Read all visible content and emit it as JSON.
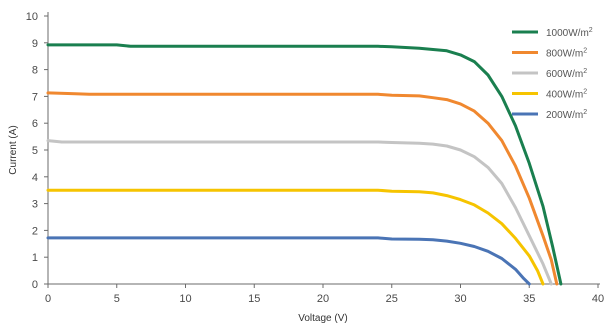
{
  "chart_data": {
    "type": "line",
    "title": "",
    "xlabel": "Voltage (V)",
    "ylabel": "Current (A)",
    "xlim": [
      0,
      40
    ],
    "ylim": [
      0,
      10
    ],
    "xticks": [
      0,
      5,
      10,
      15,
      20,
      25,
      30,
      35,
      40
    ],
    "yticks": [
      0,
      1,
      2,
      3,
      4,
      5,
      6,
      7,
      8,
      9,
      10
    ],
    "grid": false,
    "legend_position": "top-right",
    "legend_unit_sup": "2",
    "series": [
      {
        "name": "1000W/m",
        "color": "#1a7f4f",
        "points": [
          [
            0,
            8.92
          ],
          [
            5,
            8.92
          ],
          [
            6,
            8.87
          ],
          [
            10,
            8.87
          ],
          [
            20,
            8.87
          ],
          [
            24,
            8.87
          ],
          [
            25,
            8.85
          ],
          [
            27,
            8.8
          ],
          [
            29,
            8.7
          ],
          [
            30,
            8.55
          ],
          [
            31,
            8.3
          ],
          [
            32,
            7.8
          ],
          [
            33,
            7.0
          ],
          [
            34,
            5.9
          ],
          [
            35,
            4.5
          ],
          [
            36,
            2.9
          ],
          [
            36.7,
            1.4
          ],
          [
            37.3,
            0
          ]
        ]
      },
      {
        "name": "800W/m",
        "color": "#f0882f",
        "points": [
          [
            0,
            7.13
          ],
          [
            2,
            7.1
          ],
          [
            3,
            7.08
          ],
          [
            10,
            7.08
          ],
          [
            20,
            7.08
          ],
          [
            24,
            7.08
          ],
          [
            25,
            7.04
          ],
          [
            27,
            7.02
          ],
          [
            28,
            6.95
          ],
          [
            29,
            6.88
          ],
          [
            30,
            6.72
          ],
          [
            31,
            6.45
          ],
          [
            32,
            6.0
          ],
          [
            33,
            5.35
          ],
          [
            34,
            4.4
          ],
          [
            35,
            3.2
          ],
          [
            36,
            1.8
          ],
          [
            36.6,
            0.9
          ],
          [
            37,
            0
          ]
        ]
      },
      {
        "name": "600W/m",
        "color": "#c4c4c4",
        "points": [
          [
            0,
            5.35
          ],
          [
            1,
            5.3
          ],
          [
            10,
            5.3
          ],
          [
            20,
            5.3
          ],
          [
            24,
            5.3
          ],
          [
            25,
            5.28
          ],
          [
            27,
            5.25
          ],
          [
            28,
            5.22
          ],
          [
            29,
            5.15
          ],
          [
            30,
            5.0
          ],
          [
            31,
            4.75
          ],
          [
            32,
            4.35
          ],
          [
            33,
            3.75
          ],
          [
            34,
            2.85
          ],
          [
            35,
            1.8
          ],
          [
            36,
            0.75
          ],
          [
            36.6,
            0
          ]
        ]
      },
      {
        "name": "400W/m",
        "color": "#f6c400",
        "points": [
          [
            0,
            3.5
          ],
          [
            10,
            3.5
          ],
          [
            20,
            3.5
          ],
          [
            24,
            3.5
          ],
          [
            25,
            3.46
          ],
          [
            27,
            3.44
          ],
          [
            28,
            3.4
          ],
          [
            29,
            3.3
          ],
          [
            30,
            3.15
          ],
          [
            31,
            2.95
          ],
          [
            32,
            2.65
          ],
          [
            33,
            2.25
          ],
          [
            34,
            1.7
          ],
          [
            35,
            1.05
          ],
          [
            35.6,
            0.5
          ],
          [
            36,
            0
          ]
        ]
      },
      {
        "name": "200W/m",
        "color": "#4a74b5",
        "points": [
          [
            0,
            1.72
          ],
          [
            10,
            1.72
          ],
          [
            20,
            1.72
          ],
          [
            24,
            1.72
          ],
          [
            25,
            1.68
          ],
          [
            27,
            1.67
          ],
          [
            28,
            1.65
          ],
          [
            29,
            1.6
          ],
          [
            30,
            1.52
          ],
          [
            31,
            1.4
          ],
          [
            32,
            1.22
          ],
          [
            33,
            0.95
          ],
          [
            34,
            0.55
          ],
          [
            34.6,
            0.2
          ],
          [
            35,
            0
          ]
        ]
      }
    ]
  }
}
